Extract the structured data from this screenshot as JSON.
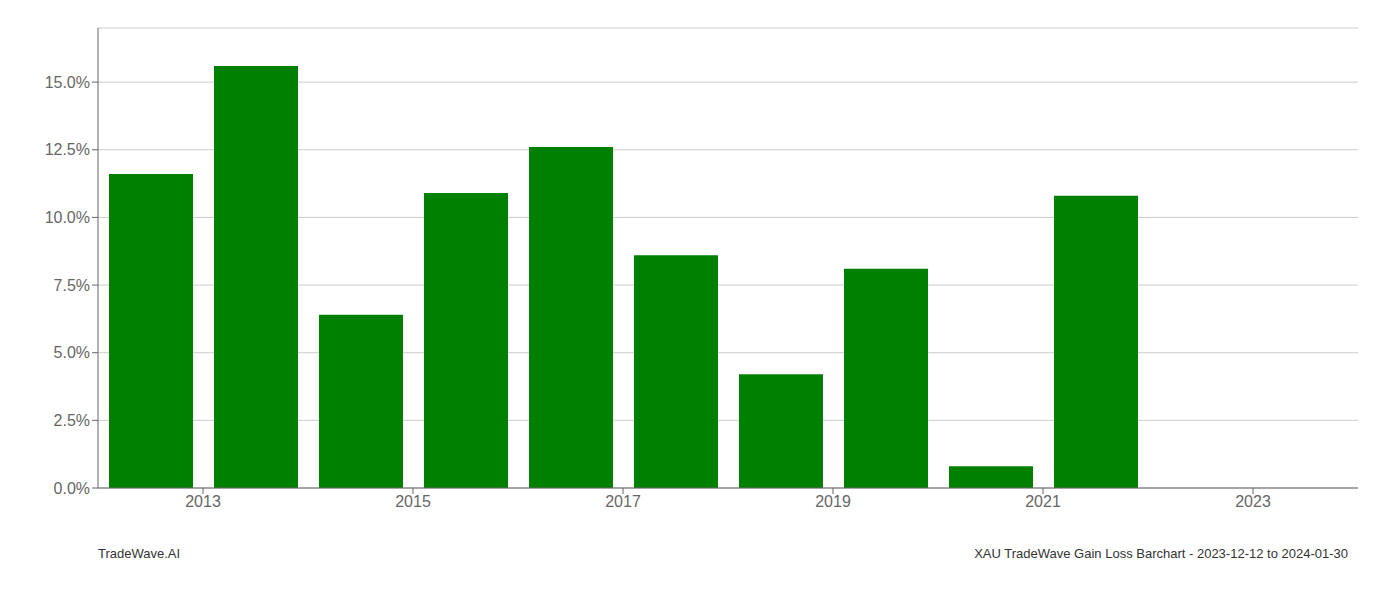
{
  "chart_data": {
    "type": "bar",
    "x": [
      2012.5,
      2013.5,
      2014.5,
      2015.5,
      2016.5,
      2017.5,
      2018.5,
      2019.5,
      2020.5,
      2021.5,
      2022.5
    ],
    "values": [
      0.116,
      0.156,
      0.064,
      0.109,
      0.126,
      0.086,
      0.042,
      0.081,
      0.008,
      0.108,
      0.0
    ],
    "color": "#008000",
    "xlim": [
      2012,
      2024
    ],
    "xticks": [
      2013,
      2015,
      2017,
      2019,
      2021,
      2023
    ],
    "ylim": [
      0,
      0.17
    ],
    "yticks": [
      {
        "value": 0.0,
        "label": "0.0%"
      },
      {
        "value": 0.025,
        "label": "2.5%"
      },
      {
        "value": 0.05,
        "label": "5.0%"
      },
      {
        "value": 0.075,
        "label": "7.5%"
      },
      {
        "value": 0.1,
        "label": "10.0%"
      },
      {
        "value": 0.125,
        "label": "12.5%"
      },
      {
        "value": 0.15,
        "label": "15.0%"
      }
    ],
    "grid": "y",
    "annotations": [
      "TradeWave.AI",
      "XAU TradeWave Gain Loss Barchart - 2023-12-12 to 2024-01-30"
    ]
  }
}
